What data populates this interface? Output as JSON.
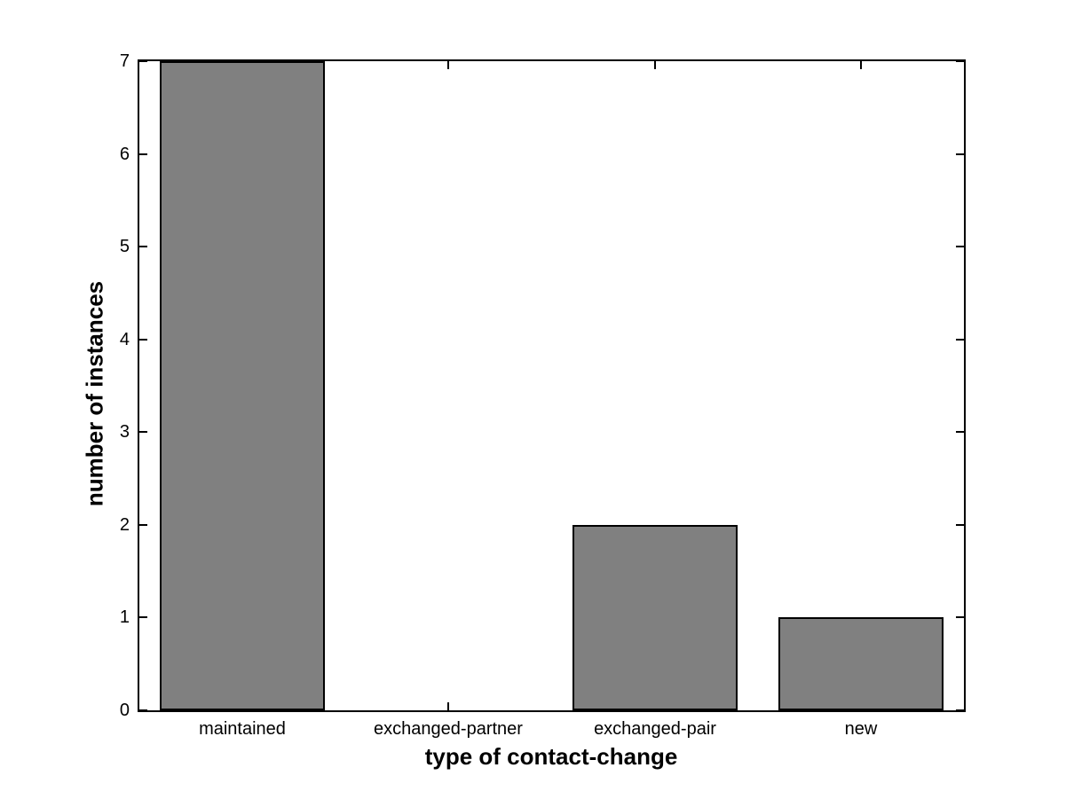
{
  "figure": {
    "background": "#ffffff",
    "axis_color": "#000000"
  },
  "chart_data": {
    "type": "bar",
    "categories": [
      "maintained",
      "exchanged-partner",
      "exchanged-pair",
      "new"
    ],
    "values": [
      7,
      0,
      2,
      1
    ],
    "title": "",
    "xlabel": "type of contact-change",
    "ylabel": "number of instances",
    "ylim": [
      0,
      7
    ],
    "yticks": [
      0,
      1,
      2,
      3,
      4,
      5,
      6,
      7
    ],
    "bar_color": "#808080",
    "bar_edge_color": "#000000",
    "bar_width_fraction": 0.8,
    "grid": false,
    "legend": null,
    "tick_direction": "in",
    "box": true
  }
}
